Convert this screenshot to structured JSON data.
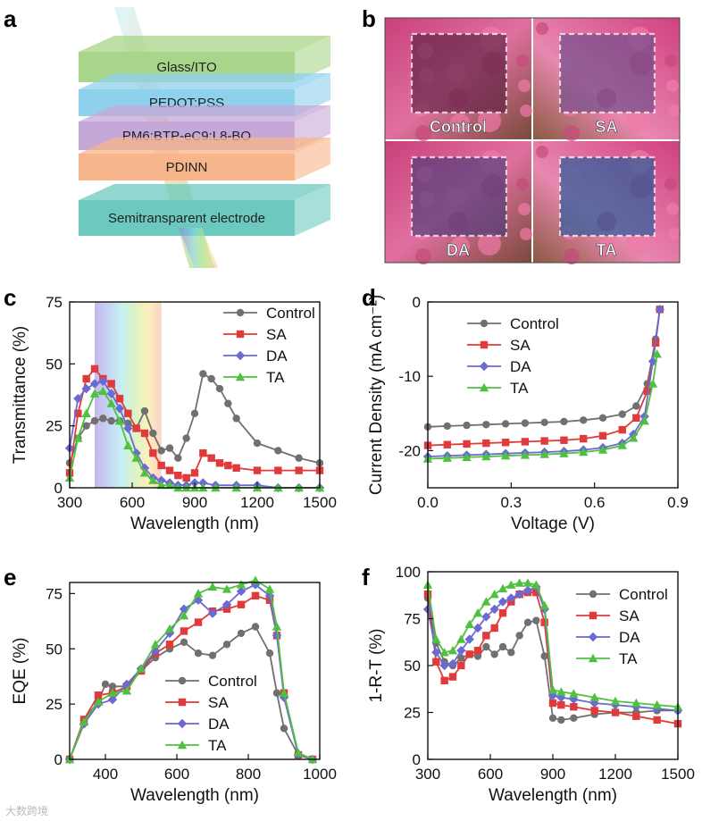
{
  "panel_labels": [
    "a",
    "b",
    "c",
    "d",
    "e",
    "f"
  ],
  "device_stack": {
    "layers": [
      "Glass/ITO",
      "PEDOT:PSS",
      "PM6:BTP-eC9:L8-BO",
      "PDINN",
      "Semitransparent electrode"
    ],
    "colors": [
      "#a8d58a",
      "#8fd0ec",
      "#c6a8d8",
      "#f6b58a",
      "#6cc9c0"
    ]
  },
  "photos": {
    "labels": [
      "Control",
      "SA",
      "DA",
      "TA"
    ]
  },
  "series_style": {
    "names": [
      "Control",
      "SA",
      "DA",
      "TA"
    ],
    "colors": [
      "#707070",
      "#e03a3a",
      "#6a6ad2",
      "#50c040"
    ],
    "markers": [
      "circle",
      "square",
      "diamond",
      "triangle"
    ]
  },
  "watermark": "大数跨境",
  "chart_data": [
    {
      "panel": "c",
      "type": "line",
      "xlabel": "Wavelength (nm)",
      "ylabel": "Transmittance (%)",
      "xlim": [
        300,
        1500
      ],
      "ylim": [
        0,
        75
      ],
      "xticks": [
        300,
        600,
        900,
        1200,
        1500
      ],
      "yticks": [
        0,
        25,
        50,
        75
      ],
      "legend_position": "top-right",
      "background_band_nm": [
        420,
        740
      ],
      "series": [
        {
          "name": "Control",
          "x": [
            300,
            340,
            380,
            420,
            460,
            500,
            540,
            580,
            620,
            660,
            700,
            740,
            780,
            820,
            860,
            900,
            940,
            980,
            1020,
            1060,
            1100,
            1200,
            1300,
            1400,
            1500
          ],
          "y": [
            10,
            20,
            25,
            27,
            28,
            27,
            27,
            26,
            24,
            31,
            22,
            15,
            16,
            12,
            20,
            30,
            46,
            44,
            40,
            34,
            28,
            18,
            15,
            12,
            10
          ]
        },
        {
          "name": "SA",
          "x": [
            300,
            340,
            380,
            420,
            460,
            500,
            540,
            580,
            620,
            660,
            700,
            740,
            780,
            820,
            860,
            900,
            940,
            980,
            1020,
            1060,
            1100,
            1200,
            1300,
            1400,
            1500
          ],
          "y": [
            6,
            30,
            44,
            48,
            44,
            42,
            36,
            30,
            24,
            22,
            14,
            9,
            7,
            5,
            4,
            6,
            14,
            12,
            10,
            9,
            8,
            7,
            7,
            7,
            7
          ]
        },
        {
          "name": "DA",
          "x": [
            300,
            340,
            380,
            420,
            460,
            500,
            540,
            580,
            620,
            660,
            700,
            740,
            780,
            820,
            860,
            900,
            940,
            1000,
            1100,
            1200,
            1300,
            1400,
            1500
          ],
          "y": [
            16,
            36,
            40,
            42,
            43,
            38,
            32,
            24,
            14,
            8,
            4,
            3,
            2,
            1,
            1,
            2,
            2,
            1,
            1,
            1,
            0,
            0,
            0
          ]
        },
        {
          "name": "TA",
          "x": [
            300,
            340,
            380,
            420,
            460,
            500,
            540,
            580,
            620,
            660,
            700,
            740,
            780,
            820,
            860,
            900,
            940,
            1000,
            1100,
            1200,
            1300,
            1400,
            1500
          ],
          "y": [
            4,
            20,
            30,
            38,
            39,
            34,
            27,
            17,
            12,
            6,
            3,
            1,
            1,
            0,
            0,
            0,
            0,
            0,
            0,
            0,
            0,
            0,
            0
          ]
        }
      ]
    },
    {
      "panel": "d",
      "type": "line",
      "xlabel": "Voltage (V)",
      "ylabel": "Current Density (mA cm⁻²)",
      "xlim": [
        0,
        0.9
      ],
      "ylim": [
        -25,
        0
      ],
      "xticks": [
        "0.0",
        "0.3",
        "0.6",
        "0.9"
      ],
      "yticks": [
        0,
        -10,
        -20
      ],
      "legend_position": "top-left",
      "series": [
        {
          "name": "Control",
          "x": [
            0,
            0.07,
            0.14,
            0.21,
            0.28,
            0.35,
            0.42,
            0.49,
            0.56,
            0.63,
            0.7,
            0.75,
            0.79,
            0.82,
            0.835
          ],
          "y": [
            -16.8,
            -16.7,
            -16.6,
            -16.5,
            -16.4,
            -16.3,
            -16.2,
            -16.1,
            -15.9,
            -15.6,
            -15.1,
            -14.0,
            -11.0,
            -5.0,
            -1.0
          ]
        },
        {
          "name": "SA",
          "x": [
            0,
            0.07,
            0.14,
            0.21,
            0.28,
            0.35,
            0.42,
            0.49,
            0.56,
            0.63,
            0.7,
            0.75,
            0.79,
            0.82,
            0.835
          ],
          "y": [
            -19.3,
            -19.2,
            -19.1,
            -19.0,
            -18.9,
            -18.8,
            -18.7,
            -18.6,
            -18.4,
            -18.0,
            -17.2,
            -15.6,
            -12.0,
            -5.5,
            -1.0
          ]
        },
        {
          "name": "DA",
          "x": [
            0,
            0.07,
            0.14,
            0.21,
            0.28,
            0.35,
            0.42,
            0.49,
            0.56,
            0.63,
            0.7,
            0.74,
            0.78,
            0.81,
            0.835
          ],
          "y": [
            -20.8,
            -20.7,
            -20.6,
            -20.5,
            -20.4,
            -20.3,
            -20.2,
            -20.1,
            -19.9,
            -19.6,
            -19.0,
            -17.8,
            -15.4,
            -8.0,
            -1.0
          ]
        },
        {
          "name": "TA",
          "x": [
            0,
            0.07,
            0.14,
            0.21,
            0.28,
            0.35,
            0.42,
            0.49,
            0.56,
            0.63,
            0.7,
            0.74,
            0.78,
            0.81,
            0.825
          ],
          "y": [
            -21.1,
            -21.0,
            -20.9,
            -20.8,
            -20.7,
            -20.6,
            -20.5,
            -20.4,
            -20.2,
            -19.9,
            -19.3,
            -18.3,
            -16.0,
            -11.0,
            -7.0
          ]
        }
      ]
    },
    {
      "panel": "e",
      "type": "line",
      "xlabel": "Wavelength (nm)",
      "ylabel": "EQE (%)",
      "xlim": [
        300,
        1000
      ],
      "ylim": [
        0,
        80
      ],
      "xticks": [
        400,
        600,
        800,
        1000
      ],
      "yticks": [
        0,
        25,
        50,
        75
      ],
      "legend_position": "bottom-center",
      "series": [
        {
          "name": "Control",
          "x": [
            300,
            340,
            380,
            400,
            420,
            460,
            500,
            540,
            580,
            620,
            660,
            700,
            740,
            780,
            820,
            860,
            880,
            900,
            940,
            980
          ],
          "y": [
            0,
            18,
            26,
            34,
            33,
            33,
            40,
            46,
            50,
            53,
            48,
            47,
            52,
            57,
            60,
            48,
            30,
            14,
            2,
            0
          ]
        },
        {
          "name": "SA",
          "x": [
            300,
            340,
            380,
            420,
            460,
            500,
            540,
            580,
            620,
            660,
            700,
            740,
            780,
            820,
            860,
            880,
            900,
            940,
            980
          ],
          "y": [
            0,
            18,
            29,
            30,
            33,
            40,
            48,
            52,
            58,
            62,
            67,
            68,
            70,
            74,
            72,
            56,
            30,
            2,
            0
          ]
        },
        {
          "name": "DA",
          "x": [
            300,
            340,
            380,
            420,
            460,
            500,
            540,
            580,
            620,
            660,
            700,
            740,
            780,
            820,
            860,
            880,
            900,
            940,
            980
          ],
          "y": [
            0,
            16,
            25,
            27,
            34,
            41,
            49,
            57,
            68,
            72,
            66,
            70,
            76,
            79,
            74,
            56,
            28,
            2,
            0
          ]
        },
        {
          "name": "TA",
          "x": [
            300,
            340,
            380,
            420,
            460,
            500,
            540,
            580,
            620,
            660,
            700,
            740,
            780,
            820,
            860,
            880,
            900,
            940,
            980
          ],
          "y": [
            0,
            17,
            26,
            30,
            31,
            41,
            52,
            59,
            65,
            75,
            78,
            77,
            79,
            81,
            77,
            60,
            30,
            3,
            0
          ]
        }
      ]
    },
    {
      "panel": "f",
      "type": "line",
      "xlabel": "Wavelength (nm)",
      "ylabel": "1-R-T (%)",
      "xlim": [
        300,
        1500
      ],
      "ylim": [
        0,
        100
      ],
      "xticks": [
        300,
        600,
        900,
        1200,
        1500
      ],
      "yticks": [
        0,
        25,
        50,
        75,
        100
      ],
      "legend_position": "top-right",
      "series": [
        {
          "name": "Control",
          "x": [
            300,
            340,
            380,
            420,
            460,
            500,
            540,
            580,
            620,
            660,
            700,
            740,
            780,
            820,
            860,
            900,
            940,
            1000,
            1100,
            1200,
            1300,
            1400,
            1500
          ],
          "y": [
            86,
            62,
            52,
            50,
            54,
            56,
            55,
            60,
            56,
            60,
            57,
            66,
            73,
            74,
            55,
            22,
            21,
            22,
            24,
            25,
            25,
            26,
            26
          ]
        },
        {
          "name": "SA",
          "x": [
            300,
            340,
            380,
            420,
            460,
            500,
            540,
            580,
            620,
            660,
            700,
            740,
            780,
            820,
            860,
            900,
            940,
            1000,
            1100,
            1200,
            1300,
            1400,
            1500
          ],
          "y": [
            88,
            52,
            42,
            44,
            50,
            56,
            58,
            66,
            70,
            78,
            84,
            88,
            89,
            89,
            73,
            30,
            29,
            28,
            26,
            25,
            23,
            21,
            19
          ]
        },
        {
          "name": "DA",
          "x": [
            300,
            340,
            380,
            420,
            460,
            500,
            540,
            580,
            620,
            660,
            700,
            740,
            780,
            820,
            860,
            900,
            940,
            1000,
            1100,
            1200,
            1300,
            1400,
            1500
          ],
          "y": [
            80,
            57,
            50,
            51,
            58,
            64,
            70,
            76,
            80,
            84,
            86,
            88,
            90,
            92,
            80,
            34,
            33,
            32,
            30,
            29,
            28,
            27,
            26
          ]
        },
        {
          "name": "TA",
          "x": [
            300,
            340,
            380,
            420,
            460,
            500,
            540,
            580,
            620,
            660,
            700,
            740,
            780,
            820,
            860,
            900,
            940,
            1000,
            1100,
            1200,
            1300,
            1400,
            1500
          ],
          "y": [
            93,
            64,
            57,
            58,
            64,
            72,
            78,
            84,
            88,
            91,
            93,
            94,
            94,
            93,
            82,
            37,
            36,
            35,
            33,
            31,
            30,
            29,
            28
          ]
        }
      ]
    }
  ]
}
